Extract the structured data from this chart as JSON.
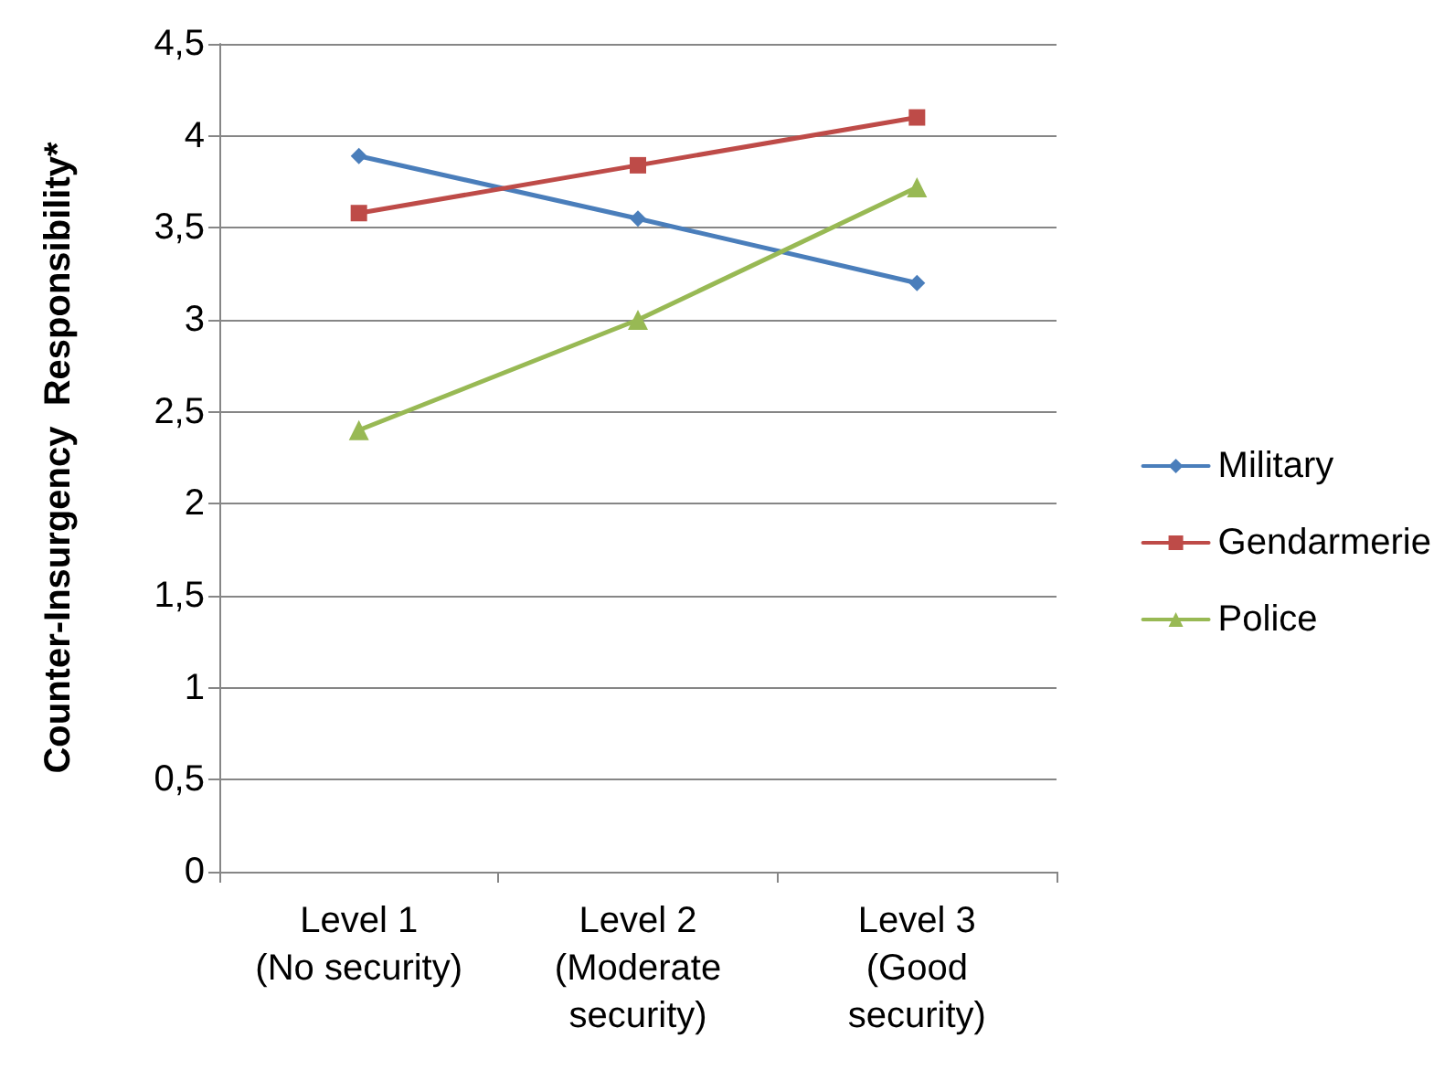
{
  "chart_data": {
    "type": "line",
    "ylabel": "Counter-Insurgency  Responsibility*",
    "categories": [
      "Level 1\n(No security)",
      "Level 2\n(Moderate\nsecurity)",
      "Level 3\n(Good\nsecurity)"
    ],
    "series": [
      {
        "name": "Military",
        "color": "#4a7ebb",
        "marker": "diamond",
        "values": [
          3.89,
          3.55,
          3.2
        ]
      },
      {
        "name": "Gendarmerie",
        "color": "#be4b48",
        "marker": "square",
        "values": [
          3.58,
          3.84,
          4.1
        ]
      },
      {
        "name": "Police",
        "color": "#98b954",
        "marker": "triangle",
        "values": [
          2.4,
          3.0,
          3.72
        ]
      }
    ],
    "ylim": [
      0,
      4.5
    ],
    "yticks": [
      0,
      {
        "value": 0.5,
        "label": "0,5"
      },
      1,
      {
        "value": 1.5,
        "label": "1,5"
      },
      2,
      {
        "value": 2.5,
        "label": "2,5"
      },
      3,
      {
        "value": 3.5,
        "label": "3,5"
      },
      4,
      {
        "value": 4.5,
        "label": "4,5"
      }
    ],
    "grid": "y",
    "legend": "right",
    "line_style": "solid"
  }
}
